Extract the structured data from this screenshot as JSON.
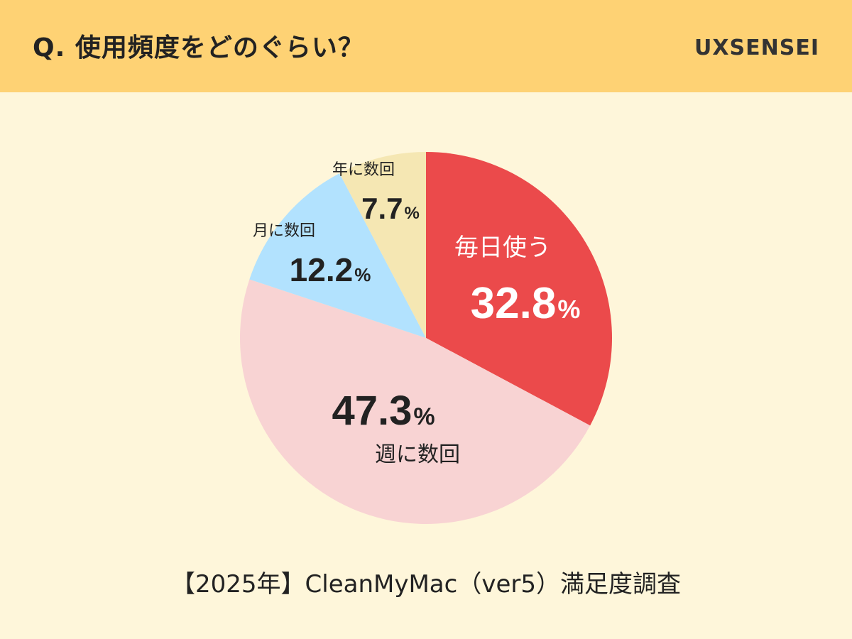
{
  "header": {
    "question": "Q. 使用頻度をどのぐらい？",
    "brand": "UXSENSEI"
  },
  "footer": {
    "caption": "【2025年】CleanMyMac（ver5）満足度調査"
  },
  "colors": {
    "header_bg": "#FED274",
    "page_bg": "#FEF6DA",
    "daily": "#EB4A4B",
    "weekly": "#F8D3D3",
    "monthly": "#B2E2FE",
    "yearly": "#F5E7B3"
  },
  "chart_data": {
    "type": "pie",
    "title": "",
    "unit": "%",
    "slices": [
      {
        "label": "毎日使う",
        "value": 32.8,
        "color": "#EB4A4B",
        "text_color": "#FFFFFF"
      },
      {
        "label": "週に数回",
        "value": 47.3,
        "color": "#F8D3D3",
        "text_color": "#222222"
      },
      {
        "label": "月に数回",
        "value": 12.2,
        "color": "#B2E2FE",
        "text_color": "#222222"
      },
      {
        "label": "年に数回",
        "value": 7.7,
        "color": "#F5E7B3",
        "text_color": "#222222"
      }
    ],
    "start_angle": "12 o'clock",
    "direction": "clockwise",
    "legend": "none"
  }
}
